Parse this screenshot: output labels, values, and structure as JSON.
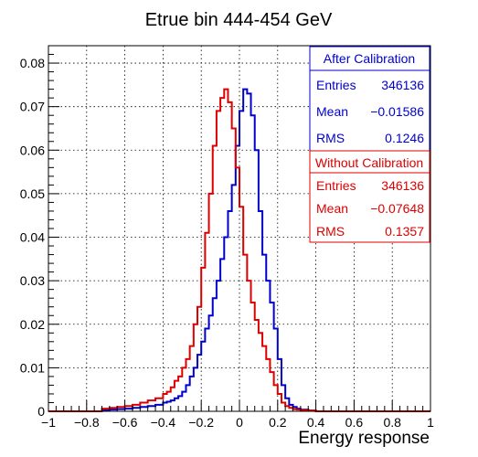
{
  "chart_data": {
    "type": "histogram",
    "title": "Etrue bin 444-454 GeV",
    "xlabel": "Energy response",
    "ylabel": "",
    "xlim": [
      -1,
      1
    ],
    "ylim": [
      0,
      0.084
    ],
    "grid": true,
    "x_ticks": [
      "−1",
      "−0.8",
      "−0.6",
      "−0.4",
      "−0.2",
      "0",
      "0.2",
      "0.4",
      "0.6",
      "0.8",
      "1"
    ],
    "y_ticks": [
      "0",
      "0.01",
      "0.02",
      "0.03",
      "0.04",
      "0.05",
      "0.06",
      "0.07",
      "0.08"
    ],
    "bin_edges": [
      -0.72,
      -0.68,
      -0.64,
      -0.6,
      -0.56,
      -0.52,
      -0.48,
      -0.44,
      -0.4,
      -0.38,
      -0.36,
      -0.34,
      -0.32,
      -0.3,
      -0.28,
      -0.26,
      -0.24,
      -0.22,
      -0.2,
      -0.18,
      -0.16,
      -0.14,
      -0.12,
      -0.1,
      -0.08,
      -0.06,
      -0.04,
      -0.02,
      0,
      0.02,
      0.04,
      0.06,
      0.08,
      0.1,
      0.12,
      0.14,
      0.16,
      0.18,
      0.2,
      0.22,
      0.24,
      0.26,
      0.28,
      0.3,
      0.32,
      0.36,
      0.4
    ],
    "series": [
      {
        "name": "After Calibration",
        "color": "#0000cc",
        "values": [
          0.0003,
          0.0004,
          0.0005,
          0.0006,
          0.0008,
          0.001,
          0.0012,
          0.0015,
          0.002,
          0.0022,
          0.0025,
          0.003,
          0.0035,
          0.0045,
          0.006,
          0.008,
          0.01,
          0.013,
          0.016,
          0.019,
          0.022,
          0.026,
          0.03,
          0.035,
          0.04,
          0.046,
          0.052,
          0.061,
          0.069,
          0.074,
          0.073,
          0.068,
          0.06,
          0.046,
          0.036,
          0.03,
          0.025,
          0.019,
          0.012,
          0.006,
          0.003,
          0.0015,
          0.001,
          0.0006,
          0.0004,
          0.0002
        ],
        "stats": {
          "header": "After Calibration",
          "entries_label": "Entries",
          "entries": "346136",
          "mean_label": "Mean",
          "mean": "−0.01586",
          "rms_label": "RMS",
          "rms": "0.1246"
        }
      },
      {
        "name": "Without Calibration",
        "color": "#dd0000",
        "values": [
          0.0006,
          0.0008,
          0.001,
          0.0012,
          0.0015,
          0.002,
          0.0025,
          0.003,
          0.004,
          0.0045,
          0.0055,
          0.007,
          0.008,
          0.01,
          0.012,
          0.015,
          0.02,
          0.024,
          0.033,
          0.041,
          0.05,
          0.061,
          0.069,
          0.072,
          0.074,
          0.071,
          0.065,
          0.056,
          0.047,
          0.036,
          0.03,
          0.025,
          0.021,
          0.018,
          0.015,
          0.012,
          0.009,
          0.006,
          0.004,
          0.002,
          0.0012,
          0.0008,
          0.0005,
          0.0004,
          0.0003,
          0.0002
        ],
        "stats": {
          "header": "Without Calibration",
          "entries_label": "Entries",
          "entries": "346136",
          "mean_label": "Mean",
          "mean": "−0.07648",
          "rms_label": "RMS",
          "rms": "0.1357"
        }
      }
    ]
  }
}
